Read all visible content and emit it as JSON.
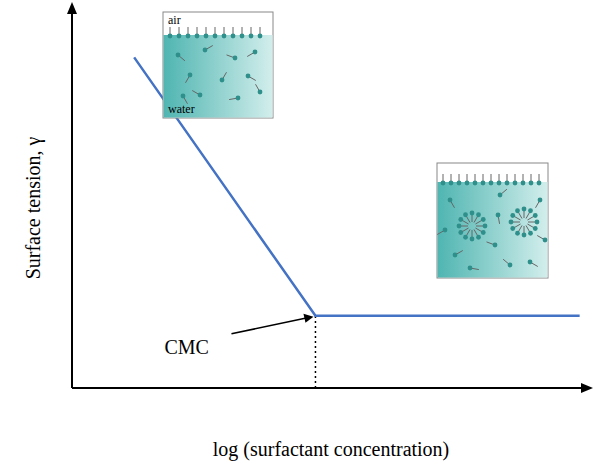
{
  "chart_data": {
    "type": "line",
    "x_label": "log (surfactant concentration)",
    "y_label": "Surface tension, γ",
    "x": [
      12,
      47,
      98
    ],
    "values": [
      87,
      19,
      19
    ],
    "color": "#4472c4",
    "xlim": [
      0,
      100
    ],
    "ylim": [
      0,
      100
    ],
    "grid": false,
    "tick_labels": false,
    "annotations": [
      {
        "text": "CMC",
        "x": 47,
        "y": 19
      }
    ],
    "inset_labels": [
      "air",
      "water"
    ]
  }
}
